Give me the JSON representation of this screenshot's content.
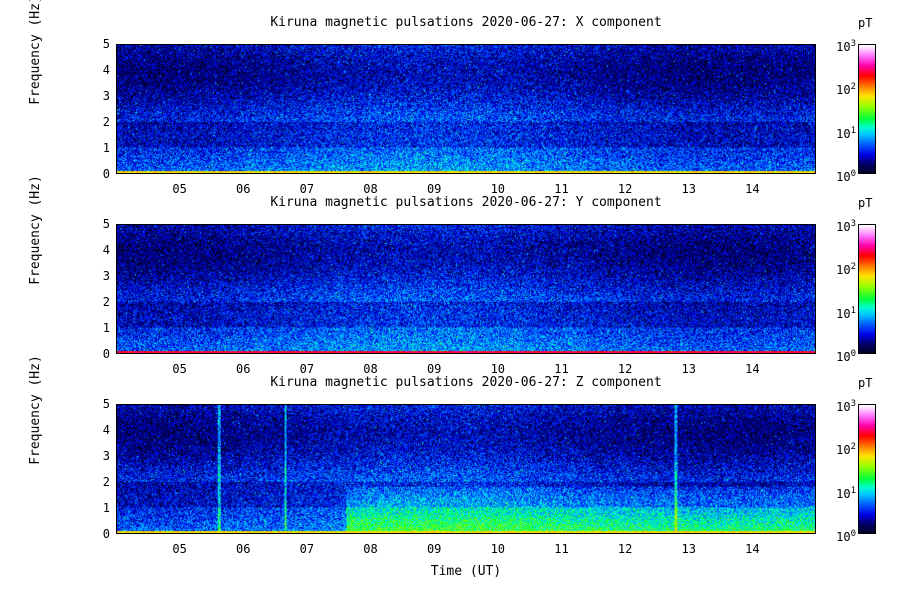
{
  "chart_data": [
    {
      "type": "heatmap",
      "title": "Kiruna magnetic pulsations 2020-06-27: X component",
      "ylabel": "Frequency (Hz)",
      "xlabel": "",
      "ylim": [
        0,
        5
      ],
      "xlim_hours_ut": [
        4,
        15
      ],
      "y_ticks": [
        "0",
        "1",
        "2",
        "3",
        "4",
        "5"
      ],
      "x_ticks": [
        "05",
        "06",
        "07",
        "08",
        "09",
        "10",
        "11",
        "12",
        "13",
        "14"
      ],
      "colorbar": {
        "unit": "pT",
        "scale": "log",
        "range": [
          1,
          1000
        ],
        "tick_bases": [
          "10",
          "10",
          "10",
          "10"
        ],
        "tick_exps": [
          "0",
          "1",
          "2",
          "3"
        ]
      },
      "low_freq_band_level": "elevated",
      "vertical_spikes_hours": []
    },
    {
      "type": "heatmap",
      "title": "Kiruna magnetic pulsations 2020-06-27: Y component",
      "ylabel": "Frequency (Hz)",
      "xlabel": "",
      "ylim": [
        0,
        5
      ],
      "xlim_hours_ut": [
        4,
        15
      ],
      "y_ticks": [
        "0",
        "1",
        "2",
        "3",
        "4",
        "5"
      ],
      "x_ticks": [
        "05",
        "06",
        "07",
        "08",
        "09",
        "10",
        "11",
        "12",
        "13",
        "14"
      ],
      "colorbar": {
        "unit": "pT",
        "scale": "log",
        "range": [
          1,
          1000
        ],
        "tick_bases": [
          "10",
          "10",
          "10",
          "10"
        ],
        "tick_exps": [
          "0",
          "1",
          "2",
          "3"
        ]
      },
      "low_freq_band_level": "high",
      "vertical_spikes_hours": []
    },
    {
      "type": "heatmap",
      "title": "Kiruna magnetic pulsations 2020-06-27: Z component",
      "ylabel": "Frequency (Hz)",
      "xlabel": "Time  (UT)",
      "ylim": [
        0,
        5
      ],
      "xlim_hours_ut": [
        4,
        15
      ],
      "y_ticks": [
        "0",
        "1",
        "2",
        "3",
        "4",
        "5"
      ],
      "x_ticks": [
        "05",
        "06",
        "07",
        "08",
        "09",
        "10",
        "11",
        "12",
        "13",
        "14"
      ],
      "colorbar": {
        "unit": "pT",
        "scale": "log",
        "range": [
          1,
          1000
        ],
        "tick_bases": [
          "10",
          "10",
          "10",
          "10"
        ],
        "tick_exps": [
          "0",
          "1",
          "2",
          "3"
        ]
      },
      "low_freq_band_level": "elevated",
      "enhanced_band_start_hour": 7.6,
      "enhanced_band_max_hz": 1.8,
      "vertical_spikes_hours": [
        5.6,
        6.65,
        12.8
      ]
    }
  ]
}
